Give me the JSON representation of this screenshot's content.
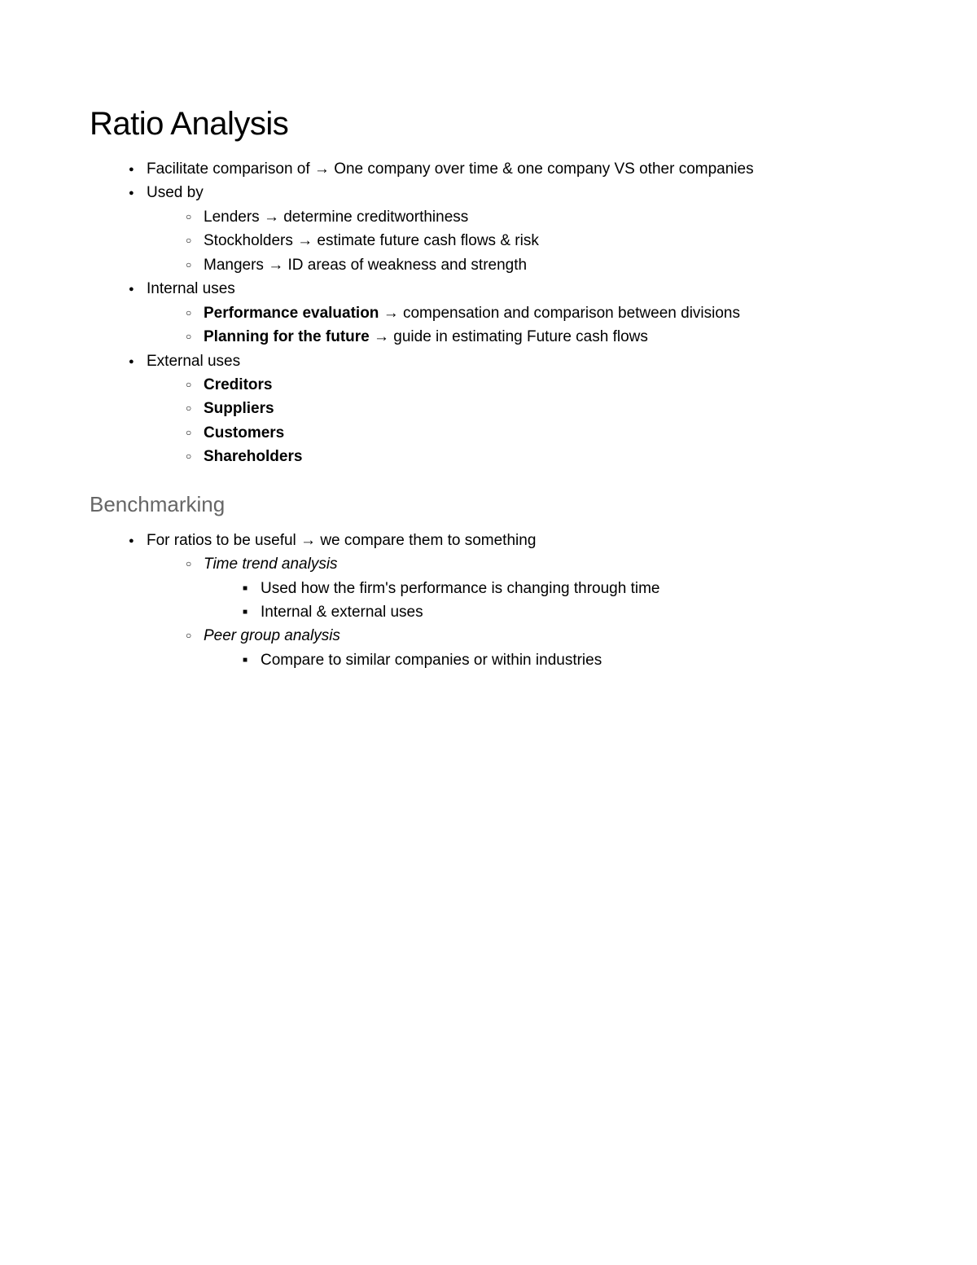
{
  "page": {
    "background_color": "#ffffff",
    "text_color": "#000000",
    "subheading_color": "#666666",
    "font_family": "Arial",
    "heading_fontsize": 40,
    "subheading_fontsize": 26,
    "body_fontsize": 19,
    "line_height": 1.55
  },
  "heading": "Ratio Analysis",
  "section1": {
    "items": [
      {
        "text": "Facilitate comparison of → One company over time & one company VS other companies"
      },
      {
        "text": "Used by",
        "children": [
          {
            "text": "Lenders → determine creditworthiness"
          },
          {
            "text": "Stockholders → estimate future cash flows & risk"
          },
          {
            "text": "Mangers → ID areas of weakness and strength"
          }
        ]
      },
      {
        "text": "Internal uses",
        "children": [
          {
            "bold_prefix": "Performance evaluation",
            "rest": " → compensation and comparison between divisions"
          },
          {
            "bold_prefix": "Planning for the future",
            "rest": " →  guide in estimating Future cash flows"
          }
        ]
      },
      {
        "text": "External uses",
        "children": [
          {
            "bold_prefix": "Creditors",
            "rest": ""
          },
          {
            "bold_prefix": "Suppliers",
            "rest": ""
          },
          {
            "bold_prefix": "Customers",
            "rest": ""
          },
          {
            "bold_prefix": "Shareholders",
            "rest": ""
          }
        ]
      }
    ]
  },
  "subheading": "Benchmarking",
  "section2": {
    "items": [
      {
        "text": "For ratios to be useful → we compare them to something",
        "children": [
          {
            "italic_text": "Time trend analysis",
            "children": [
              {
                "text": "Used how the firm's performance is changing through time"
              },
              {
                "text": "Internal & external uses"
              }
            ]
          },
          {
            "italic_text": "Peer group analysis",
            "children": [
              {
                "text": "Compare to similar companies or within industries"
              }
            ]
          }
        ]
      }
    ]
  }
}
